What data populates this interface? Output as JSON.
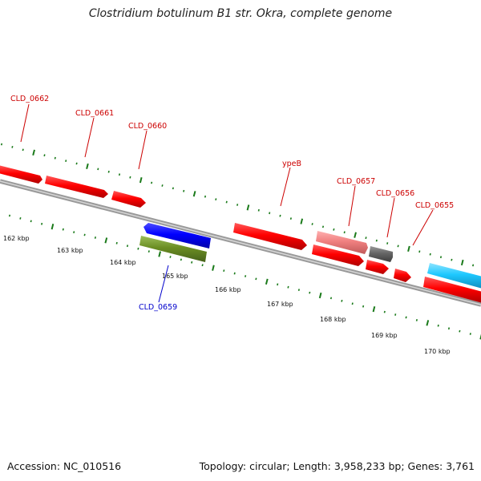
{
  "title": "Clostridium botulinum B1 str. Okra, complete genome",
  "footer": {
    "accession": "Accession: NC_010516",
    "summary": "Topology: circular; Length: 3,958,233 bp; Genes: 3,761"
  },
  "colors": {
    "forward_gene": "#ff0000",
    "reverse_gene_blue": "#0000ff",
    "reverse_gene_olive": "#6b8e23",
    "pseudo_pink": "#f08080",
    "grey_gene": "#666666",
    "cyan_gene": "#1ec8ff",
    "backbone": "#888888",
    "tick": "#1a7a1a",
    "forward_label": "#cc0000",
    "reverse_label": "#0000cc"
  },
  "gene_labels": [
    {
      "name": "CLD_0662",
      "strand": "forward"
    },
    {
      "name": "CLD_0661",
      "strand": "forward"
    },
    {
      "name": "CLD_0660",
      "strand": "forward"
    },
    {
      "name": "ypeB",
      "strand": "forward"
    },
    {
      "name": "CLD_0657",
      "strand": "forward"
    },
    {
      "name": "CLD_0656",
      "strand": "forward"
    },
    {
      "name": "CLD_0655",
      "strand": "forward"
    },
    {
      "name": "CLD_0659",
      "strand": "reverse"
    }
  ],
  "scale_labels": [
    "162 kbp",
    "163 kbp",
    "164 kbp",
    "165 kbp",
    "166 kbp",
    "167 kbp",
    "168 kbp",
    "169 kbp",
    "170 kbp"
  ]
}
